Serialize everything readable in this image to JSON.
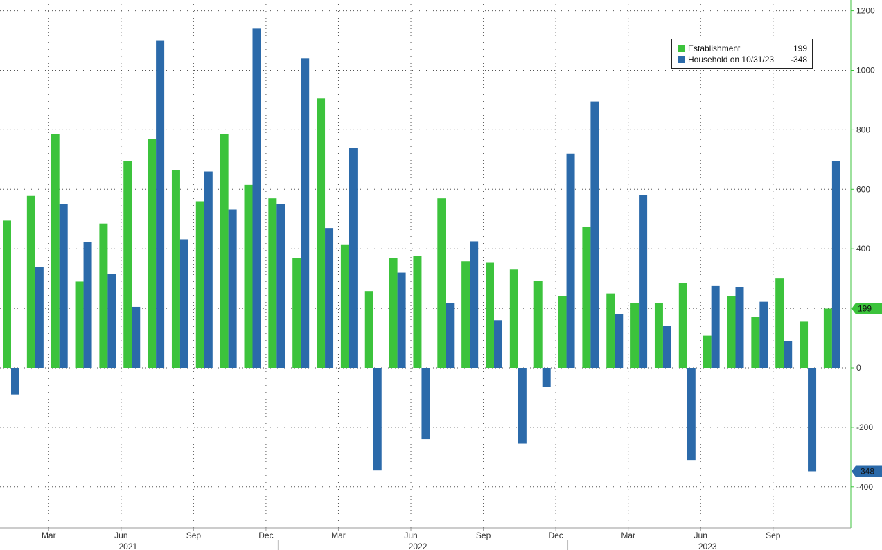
{
  "chart_data": {
    "type": "bar",
    "title": "",
    "xlabel": "",
    "ylabel": "",
    "ylim": [
      -530,
      1230
    ],
    "grid": true,
    "legend_position": "top-right",
    "y_ticks": [
      1200,
      1000,
      800,
      600,
      400,
      200,
      0,
      -200,
      -400
    ],
    "y_tick_labels": [
      "1200",
      "1000",
      "800",
      "600",
      "400",
      "",
      "0",
      "-200",
      "-400"
    ],
    "x_month_ticks": [
      {
        "label": "Mar",
        "index": 2
      },
      {
        "label": "Jun",
        "index": 5
      },
      {
        "label": "Sep",
        "index": 8
      },
      {
        "label": "Dec",
        "index": 11
      },
      {
        "label": "Mar",
        "index": 14
      },
      {
        "label": "Jun",
        "index": 17
      },
      {
        "label": "Sep",
        "index": 20
      },
      {
        "label": "Dec",
        "index": 23
      },
      {
        "label": "Mar",
        "index": 26
      },
      {
        "label": "Jun",
        "index": 29
      },
      {
        "label": "Sep",
        "index": 32
      }
    ],
    "x_year_labels": [
      {
        "label": "2021",
        "index": 5
      },
      {
        "label": "2022",
        "index": 17
      },
      {
        "label": "2023",
        "index": 29
      }
    ],
    "series": [
      {
        "name": "Establishment",
        "color": "#3cc33c",
        "values": [
          495,
          578,
          785,
          290,
          485,
          695,
          770,
          665,
          560,
          785,
          615,
          570,
          370,
          905,
          415,
          258,
          370,
          375,
          570,
          358,
          355,
          330,
          293,
          240,
          475,
          250,
          218,
          218,
          285,
          108,
          240,
          170,
          300,
          155,
          199
        ]
      },
      {
        "name": "Household on 10/31/23",
        "color": "#2b6aaa",
        "values": [
          -90,
          338,
          550,
          422,
          315,
          205,
          1100,
          432,
          660,
          532,
          1140,
          550,
          1040,
          470,
          740,
          -345,
          320,
          -240,
          218,
          425,
          160,
          -255,
          -65,
          720,
          895,
          180,
          580,
          140,
          -310,
          275,
          272,
          222,
          90,
          -348,
          695
        ]
      }
    ],
    "legend": [
      {
        "label": "Establishment",
        "value": "199",
        "color": "#3cc33c"
      },
      {
        "label": "Household on 10/31/23",
        "value": "-348",
        "color": "#2b6aaa"
      }
    ],
    "last_value_tags": [
      {
        "text": "199",
        "value": 199,
        "color": "#3cc33c"
      },
      {
        "text": "-348",
        "value": -348,
        "color": "#2b6aaa"
      }
    ]
  }
}
